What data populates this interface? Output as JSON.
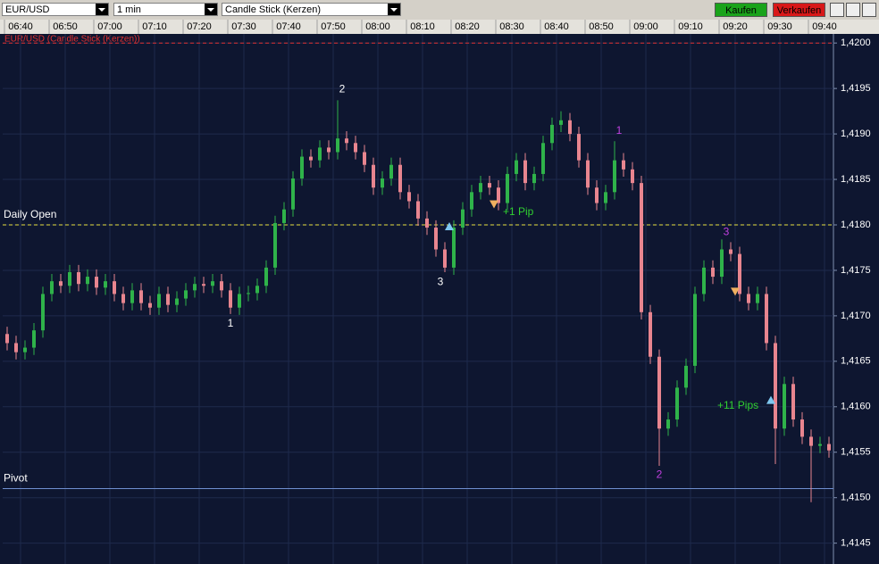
{
  "toolbar": {
    "symbol": "EUR/USD",
    "interval": "1 min",
    "chart_style": "Candle Stick (Kerzen)",
    "buy": "Kaufen",
    "sell": "Verkaufen"
  },
  "chart_data": {
    "type": "candlestick",
    "title": "EUR/USD (Candle Stick (Kerzen))",
    "x": [
      "06:37",
      "06:39",
      "06:41",
      "06:43",
      "06:45",
      "06:47",
      "06:49",
      "06:51",
      "06:53",
      "06:55",
      "06:57",
      "06:59",
      "07:01",
      "07:03",
      "07:05",
      "07:07",
      "07:09",
      "07:11",
      "07:13",
      "07:15",
      "07:17",
      "07:19",
      "07:21",
      "07:23",
      "07:25",
      "07:27",
      "07:29",
      "07:31",
      "07:33",
      "07:35",
      "07:37",
      "07:39",
      "07:41",
      "07:43",
      "07:45",
      "07:47",
      "07:49",
      "07:51",
      "07:53",
      "07:55",
      "07:57",
      "07:59",
      "08:01",
      "08:03",
      "08:05",
      "08:07",
      "08:09",
      "08:11",
      "08:13",
      "08:15",
      "08:17",
      "08:19",
      "08:21",
      "08:23",
      "08:25",
      "08:27",
      "08:29",
      "08:31",
      "08:33",
      "08:35",
      "08:37",
      "08:39",
      "08:41",
      "08:43",
      "08:45",
      "08:47",
      "08:49",
      "08:51",
      "08:53",
      "08:55",
      "08:57",
      "08:59",
      "09:01",
      "09:03",
      "09:05",
      "09:07",
      "09:09",
      "09:11",
      "09:13",
      "09:15",
      "09:17",
      "09:19",
      "09:21",
      "09:23",
      "09:25",
      "09:27",
      "09:29",
      "09:31",
      "09:33",
      "09:35",
      "09:37",
      "09:39",
      "09:41"
    ],
    "open": [
      1.4168,
      1.4167,
      1.4166,
      1.41665,
      1.41684,
      1.41724,
      1.41738,
      1.41733,
      1.41748,
      1.41735,
      1.41743,
      1.41731,
      1.41738,
      1.41724,
      1.41714,
      1.41728,
      1.41714,
      1.41709,
      1.41724,
      1.41712,
      1.41719,
      1.41728,
      1.41735,
      1.41733,
      1.41738,
      1.41728,
      1.41709,
      1.41724,
      1.41725,
      1.41733,
      1.41753,
      1.41802,
      1.41817,
      1.41851,
      1.41875,
      1.41871,
      1.41885,
      1.4188,
      1.41895,
      1.4189,
      1.4188,
      1.41866,
      1.41841,
      1.41851,
      1.41866,
      1.41836,
      1.41826,
      1.41807,
      1.41797,
      1.41773,
      1.41753,
      1.41797,
      1.41817,
      1.41836,
      1.41846,
      1.41841,
      1.41824,
      1.41856,
      1.41871,
      1.41846,
      1.41856,
      1.4189,
      1.4191,
      1.41915,
      1.419,
      1.41871,
      1.41841,
      1.41824,
      1.41836,
      1.41871,
      1.41861,
      1.41846,
      1.41704,
      1.41655,
      1.41576,
      1.41586,
      1.41621,
      1.41645,
      1.41724,
      1.41753,
      1.41743,
      1.41773,
      1.41768,
      1.41724,
      1.41714,
      1.41724,
      1.4167,
      1.41576,
      1.41625,
      1.41586,
      1.41567,
      1.41557,
      1.41559
    ],
    "high": [
      1.41688,
      1.41678,
      1.41673,
      1.41692,
      1.41732,
      1.41746,
      1.41746,
      1.41756,
      1.41756,
      1.41751,
      1.41751,
      1.41746,
      1.41746,
      1.41732,
      1.41736,
      1.41736,
      1.41722,
      1.41732,
      1.41732,
      1.41727,
      1.41736,
      1.41743,
      1.41743,
      1.41746,
      1.41746,
      1.41736,
      1.41732,
      1.41733,
      1.41741,
      1.41761,
      1.4181,
      1.41825,
      1.41859,
      1.41883,
      1.41883,
      1.41893,
      1.41893,
      1.41937,
      1.41903,
      1.41898,
      1.41888,
      1.41874,
      1.41859,
      1.41874,
      1.41874,
      1.41844,
      1.41834,
      1.41815,
      1.41805,
      1.41781,
      1.41805,
      1.41825,
      1.41844,
      1.41854,
      1.41854,
      1.41849,
      1.41864,
      1.41879,
      1.41879,
      1.41864,
      1.41898,
      1.41918,
      1.41925,
      1.41923,
      1.41908,
      1.41879,
      1.41849,
      1.41844,
      1.41892,
      1.41879,
      1.41869,
      1.41854,
      1.41712,
      1.41663,
      1.41594,
      1.41629,
      1.41653,
      1.41732,
      1.41761,
      1.41761,
      1.41784,
      1.41781,
      1.41776,
      1.41732,
      1.41732,
      1.41732,
      1.41678,
      1.41633,
      1.41633,
      1.41594,
      1.41575,
      1.41567,
      1.41567
    ],
    "low": [
      1.41662,
      1.41652,
      1.41652,
      1.41657,
      1.41676,
      1.41716,
      1.41725,
      1.41725,
      1.41727,
      1.41727,
      1.41723,
      1.41723,
      1.41716,
      1.41706,
      1.41706,
      1.41706,
      1.41701,
      1.41701,
      1.41704,
      1.41704,
      1.41711,
      1.4172,
      1.41725,
      1.41725,
      1.4172,
      1.41702,
      1.41701,
      1.41716,
      1.41717,
      1.41725,
      1.41745,
      1.41794,
      1.41809,
      1.41843,
      1.41863,
      1.41863,
      1.41872,
      1.41872,
      1.41882,
      1.41872,
      1.41858,
      1.41833,
      1.41833,
      1.41843,
      1.41828,
      1.41818,
      1.41799,
      1.41789,
      1.41765,
      1.41748,
      1.41745,
      1.41789,
      1.41809,
      1.41828,
      1.41833,
      1.41816,
      1.41816,
      1.41848,
      1.41838,
      1.41838,
      1.41848,
      1.41882,
      1.41902,
      1.41892,
      1.41863,
      1.41833,
      1.41816,
      1.41816,
      1.41828,
      1.41853,
      1.41838,
      1.41696,
      1.41647,
      1.41535,
      1.41568,
      1.41578,
      1.41613,
      1.41637,
      1.41716,
      1.41735,
      1.41735,
      1.4176,
      1.41716,
      1.41706,
      1.41706,
      1.41662,
      1.41537,
      1.41568,
      1.41578,
      1.41559,
      1.41495,
      1.41549,
      1.41544
    ],
    "close": [
      1.4167,
      1.4166,
      1.41665,
      1.41684,
      1.41724,
      1.41738,
      1.41733,
      1.41748,
      1.41735,
      1.41743,
      1.41731,
      1.41738,
      1.41724,
      1.41714,
      1.41728,
      1.41714,
      1.41709,
      1.41724,
      1.41712,
      1.41719,
      1.41728,
      1.41735,
      1.41733,
      1.41738,
      1.41728,
      1.41709,
      1.41724,
      1.41725,
      1.41733,
      1.41753,
      1.41802,
      1.41817,
      1.41851,
      1.41875,
      1.41871,
      1.41885,
      1.4188,
      1.41895,
      1.4189,
      1.4188,
      1.41866,
      1.41841,
      1.41851,
      1.41866,
      1.41836,
      1.41826,
      1.41807,
      1.41797,
      1.41773,
      1.41753,
      1.41797,
      1.41817,
      1.41836,
      1.41846,
      1.41841,
      1.41824,
      1.41856,
      1.41871,
      1.41846,
      1.41856,
      1.4189,
      1.4191,
      1.41915,
      1.419,
      1.41871,
      1.41841,
      1.41824,
      1.41836,
      1.41871,
      1.41861,
      1.41846,
      1.41704,
      1.41655,
      1.41576,
      1.41586,
      1.41621,
      1.41645,
      1.41724,
      1.41753,
      1.41743,
      1.41773,
      1.41768,
      1.41724,
      1.41714,
      1.41724,
      1.4167,
      1.41576,
      1.41625,
      1.41586,
      1.41567,
      1.41557,
      1.41559,
      1.41552
    ],
    "up_color": "#2fb34a",
    "down_color": "#e8858f",
    "xlim": [
      "06:36",
      "09:42"
    ],
    "xticks": [
      "06:40",
      "06:50",
      "07:00",
      "07:10",
      "07:20",
      "07:30",
      "07:40",
      "07:50",
      "08:00",
      "08:10",
      "08:20",
      "08:30",
      "08:40",
      "08:50",
      "09:00",
      "09:10",
      "09:20",
      "09:30",
      "09:40"
    ],
    "ylim": [
      1.41431,
      1.4201
    ],
    "yticks": [
      {
        "value": 1.4145,
        "label": "1,4145"
      },
      {
        "value": 1.415,
        "label": "1,4150"
      },
      {
        "value": 1.4155,
        "label": "1,4155"
      },
      {
        "value": 1.416,
        "label": "1,4160"
      },
      {
        "value": 1.4165,
        "label": "1,4165"
      },
      {
        "value": 1.417,
        "label": "1,4170"
      },
      {
        "value": 1.4175,
        "label": "1,4175"
      },
      {
        "value": 1.418,
        "label": "1,4180"
      },
      {
        "value": 1.4185,
        "label": "1,4185"
      },
      {
        "value": 1.419,
        "label": "1,4190"
      },
      {
        "value": 1.4195,
        "label": "1,4195"
      },
      {
        "value": 1.42,
        "label": "1,4200"
      }
    ],
    "grid": true,
    "hlines": [
      {
        "label": "Daily Open",
        "value": 1.418,
        "color": "#e8e040",
        "dashed": true
      },
      {
        "label": "Pivot",
        "value": 1.4151,
        "color": "#6f8fd0",
        "dashed": false
      },
      {
        "value": 1.42,
        "color": "#e03030",
        "dashed": true
      }
    ],
    "annotations": [
      {
        "text": "1",
        "x": "07:27",
        "y": 1.41691,
        "color": "#ffffff"
      },
      {
        "text": "2",
        "x": "07:52",
        "y": 1.41949,
        "color": "#ffffff"
      },
      {
        "text": "3",
        "x": "08:14",
        "y": 1.41737,
        "color": "#ffffff"
      },
      {
        "text": "1",
        "x": "08:54",
        "y": 1.41903,
        "color": "#c040e0"
      },
      {
        "text": "2",
        "x": "09:03",
        "y": 1.41525,
        "color": "#c040e0"
      },
      {
        "text": "3",
        "x": "09:18",
        "y": 1.41792,
        "color": "#c040e0"
      },
      {
        "text": "+1 Pip",
        "x": "08:28",
        "y": 1.41814,
        "color": "#30d030"
      },
      {
        "text": "+11 Pips",
        "x": "09:16",
        "y": 1.41601,
        "color": "#30d030"
      }
    ],
    "signals": [
      {
        "x": "08:16",
        "y": 1.41798,
        "direction": "up",
        "color": "#7ec8f0"
      },
      {
        "x": "08:26",
        "y": 1.41823,
        "direction": "down",
        "color": "#f0b060"
      },
      {
        "x": "09:20",
        "y": 1.41727,
        "direction": "down",
        "color": "#f0b060"
      },
      {
        "x": "09:28",
        "y": 1.41607,
        "direction": "up",
        "color": "#7ec8f0"
      }
    ]
  }
}
